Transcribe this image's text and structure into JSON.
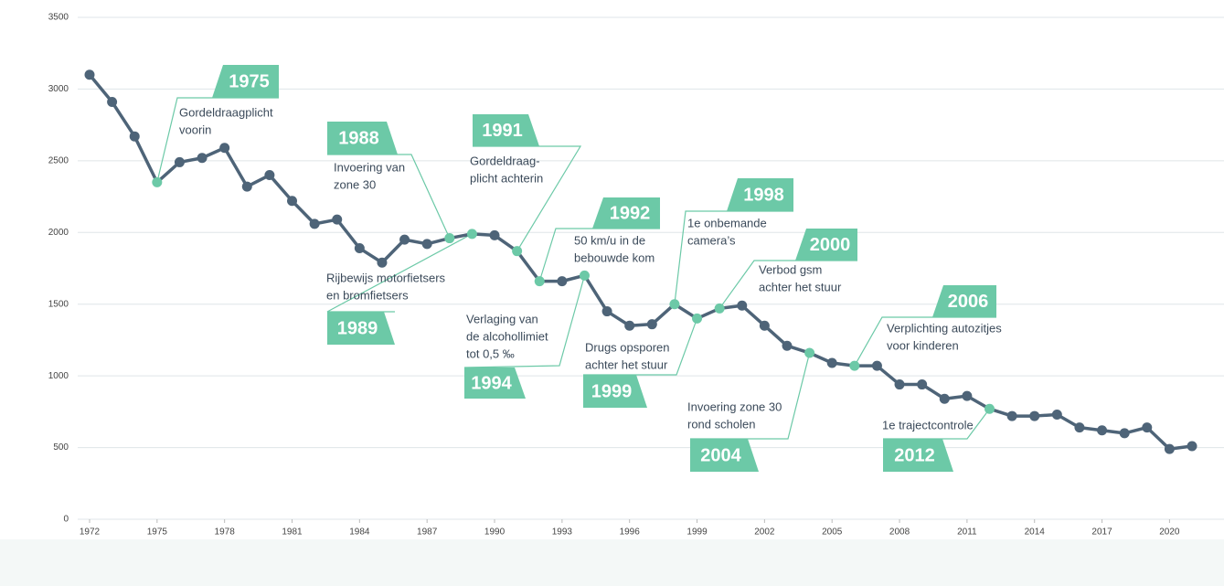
{
  "chart_data": {
    "type": "line",
    "x": [
      1972,
      1973,
      1974,
      1975,
      1976,
      1977,
      1978,
      1979,
      1980,
      1981,
      1982,
      1983,
      1984,
      1985,
      1986,
      1987,
      1988,
      1989,
      1990,
      1991,
      1992,
      1993,
      1994,
      1995,
      1996,
      1997,
      1998,
      1999,
      2000,
      2001,
      2002,
      2003,
      2004,
      2005,
      2006,
      2007,
      2008,
      2009,
      2010,
      2011,
      2012,
      2013,
      2014,
      2015,
      2016,
      2017,
      2018,
      2019,
      2020,
      2021
    ],
    "values": [
      3100,
      2910,
      2670,
      2350,
      2490,
      2520,
      2590,
      2320,
      2400,
      2220,
      2060,
      2090,
      1890,
      1790,
      1950,
      1920,
      1960,
      1990,
      1980,
      1870,
      1660,
      1660,
      1700,
      1450,
      1350,
      1360,
      1500,
      1400,
      1470,
      1490,
      1350,
      1210,
      1160,
      1090,
      1070,
      1070,
      940,
      940,
      840,
      860,
      770,
      720,
      720,
      730,
      640,
      620,
      600,
      640,
      490,
      510
    ],
    "color": "#4e6478",
    "highlight_color": "#6cc9a7",
    "xlim": [
      1972,
      2021
    ],
    "xticks": [
      1972,
      1975,
      1978,
      1981,
      1984,
      1987,
      1990,
      1993,
      1996,
      1999,
      2002,
      2005,
      2008,
      2011,
      2014,
      2017,
      2020
    ],
    "ylim": [
      0,
      3500
    ],
    "yticks": [
      0,
      500,
      1000,
      1500,
      2000,
      2500,
      3000,
      3500
    ],
    "grid": true,
    "annotations": [
      {
        "x": 1975,
        "text": [
          "Gordeldraagplicht",
          "voorin"
        ]
      },
      {
        "x": 1988,
        "text": [
          "Invoering van",
          "zone 30"
        ]
      },
      {
        "x": 1989,
        "text": [
          "Rijbewijs motorfietsers",
          "en bromfietsers"
        ]
      },
      {
        "x": 1991,
        "text": [
          "Gordeldraag-",
          "plicht achterin"
        ]
      },
      {
        "x": 1992,
        "text": [
          "50 km/u in de",
          "bebouwde kom"
        ]
      },
      {
        "x": 1994,
        "text": [
          "Verlaging van",
          "de alcohollimiet",
          "tot 0,5 ‰"
        ]
      },
      {
        "x": 1998,
        "text": [
          "1e onbemande",
          "camera’s"
        ]
      },
      {
        "x": 1999,
        "text": [
          "Drugs opsporen",
          "achter het stuur"
        ]
      },
      {
        "x": 2000,
        "text": [
          "Verbod gsm",
          "achter het stuur"
        ]
      },
      {
        "x": 2004,
        "text": [
          "Invoering zone 30",
          "rond scholen"
        ]
      },
      {
        "x": 2006,
        "text": [
          "Verplichting autozitjes",
          "voor kinderen"
        ]
      },
      {
        "x": 2012,
        "text": [
          "1e trajectcontrole"
        ]
      }
    ]
  }
}
